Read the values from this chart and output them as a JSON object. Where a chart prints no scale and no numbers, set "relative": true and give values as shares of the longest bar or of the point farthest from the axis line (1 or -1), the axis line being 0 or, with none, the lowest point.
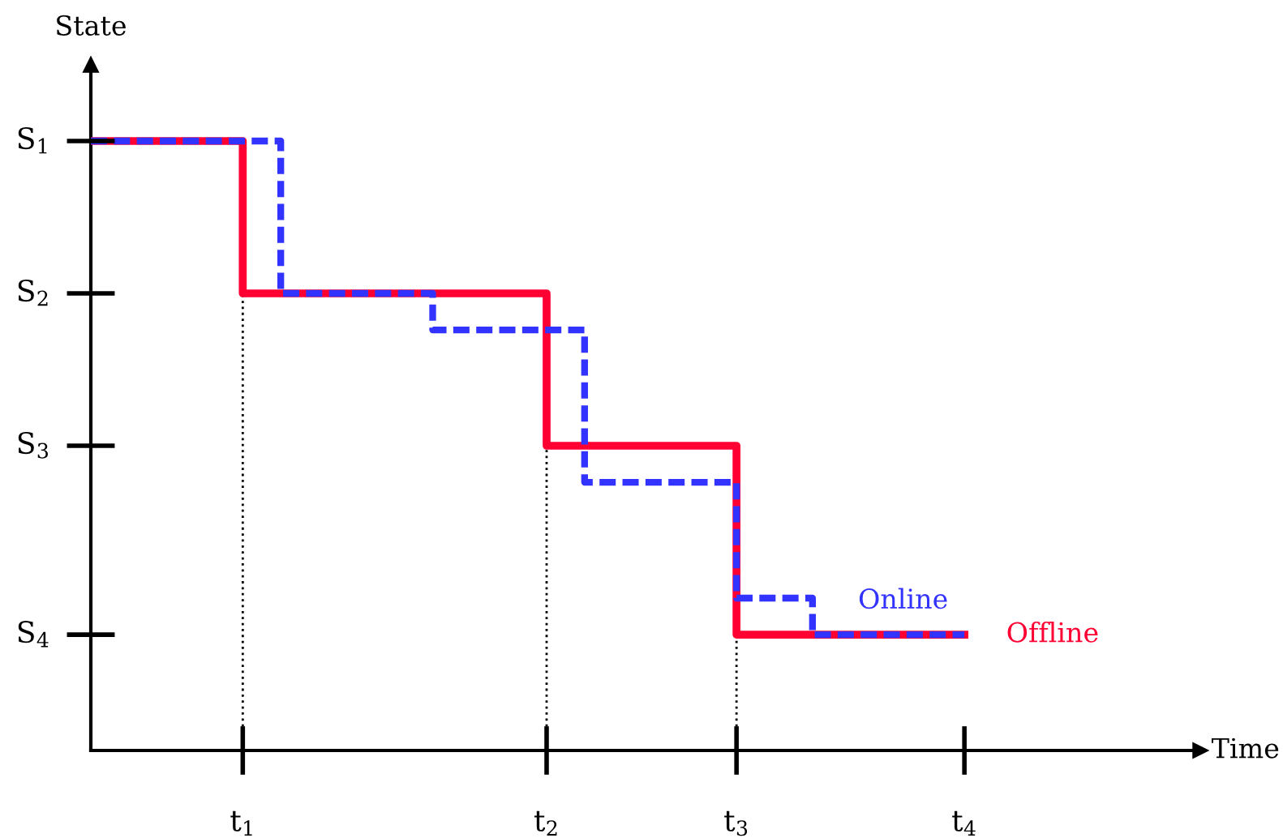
{
  "chart_data": {
    "type": "step",
    "relative": true,
    "ylabel": "State",
    "categories": [
      null,
      null,
      null,
      null,
      "t$_{1}$",
      null,
      null,
      null,
      null,
      null,
      null,
      null,
      "t$_{2}$",
      null,
      null,
      null,
      null,
      "t$_{3}$",
      null,
      null,
      null,
      null,
      null,
      "t$_{4}$"
    ],
    "annotations": [
      "S$_{1}$",
      "S$_{2}$",
      "S$_{3}$",
      "S$_{4}$",
      "Time"
    ],
    "series": [
      {
        "name": "Offline",
        "color": "#ff0033",
        "line_style": "solid",
        "values": [
          1,
          1,
          1,
          1,
          0.75,
          0.75,
          0.75,
          0.75,
          0.75,
          0.75,
          0.75,
          0.75,
          0.5,
          0.5,
          0.5,
          0.5,
          0.5,
          0.19,
          0.19,
          0.19,
          0.19,
          0.19,
          0.19,
          0.19
        ]
      },
      {
        "name": "Online",
        "color": "#3333ff",
        "line_style": "dashed",
        "values": [
          1,
          1,
          1,
          1,
          1,
          0.75,
          0.75,
          0.75,
          0.75,
          0.69,
          0.69,
          0.69,
          0.69,
          0.44,
          0.44,
          0.44,
          0.44,
          0.25,
          0.25,
          0.19,
          0.19,
          0.19,
          0.19,
          0.19
        ]
      }
    ],
    "ref_lines": [
      {
        "axis": "x",
        "value": "t$_{1}$",
        "line_style": "dotted",
        "color": "#000000"
      },
      {
        "axis": "x",
        "value": "t$_{2}$",
        "line_style": "dotted",
        "color": "#000000"
      },
      {
        "axis": "x",
        "value": "t$_{3}$",
        "line_style": "dotted",
        "color": "#000000"
      }
    ],
    "grid": false,
    "legend": false
  }
}
